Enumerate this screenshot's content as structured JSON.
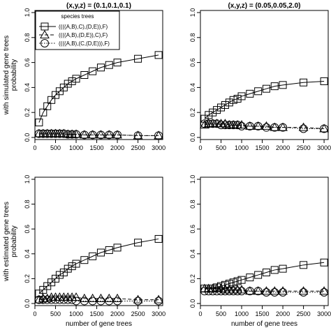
{
  "chart_data": {
    "type": "line",
    "row_labels": [
      [
        "with simulated gene trees",
        "probability"
      ],
      [
        "with estimated gene trees",
        "probability"
      ]
    ],
    "xlabel": "number of gene trees",
    "legend": {
      "title": "species trees",
      "placement": "top-left",
      "entries": [
        {
          "label": "((((A,B),C),(D,E)),F)",
          "marker": "square",
          "line": "solid"
        },
        {
          "label": "((((A,B),(D,E)),C),F)",
          "marker": "triangle",
          "line": "dashed"
        },
        {
          "label": "((((A,B),(C,(D,E))),F)",
          "marker": "circle",
          "line": "dotted"
        }
      ]
    },
    "x_ticks": [
      0,
      500,
      1000,
      1500,
      2000,
      2500,
      3000
    ],
    "y_ticks": [
      "0.0",
      "0.2",
      "0.4",
      "0.6",
      "0.8",
      "1.0"
    ],
    "xlim": [
      0,
      3100
    ],
    "ylim": [
      0,
      1
    ],
    "grid": false,
    "x": [
      100,
      200,
      300,
      400,
      500,
      600,
      700,
      800,
      900,
      1000,
      1200,
      1400,
      1600,
      1800,
      2000,
      2500,
      3000
    ],
    "panels": [
      {
        "title": "(x,y,z) = (0.1,0.1,0.1)",
        "series": [
          {
            "name": "((((A,B),C),(D,E)),F)",
            "values": [
              0.12,
              0.2,
              0.25,
              0.3,
              0.34,
              0.37,
              0.4,
              0.43,
              0.45,
              0.47,
              0.5,
              0.53,
              0.56,
              0.58,
              0.6,
              0.63,
              0.66
            ]
          },
          {
            "name": "((((A,B),(D,E)),C),F)",
            "values": [
              0.03,
              0.03,
              0.03,
              0.03,
              0.03,
              0.03,
              0.03,
              0.025,
              0.025,
              0.025,
              0.02,
              0.02,
              0.02,
              0.02,
              0.02,
              0.015,
              0.015
            ]
          },
          {
            "name": "((((A,B),(C,(D,E))),F)",
            "values": [
              0.03,
              0.03,
              0.03,
              0.03,
              0.03,
              0.03,
              0.03,
              0.025,
              0.025,
              0.025,
              0.02,
              0.02,
              0.02,
              0.02,
              0.02,
              0.015,
              0.015
            ]
          }
        ]
      },
      {
        "title": "(x,y,z) = (0.05,0.05,2.0)",
        "series": [
          {
            "name": "((((A,B),C),(D,E)),F)",
            "values": [
              0.15,
              0.18,
              0.2,
              0.22,
              0.24,
              0.26,
              0.28,
              0.3,
              0.31,
              0.33,
              0.35,
              0.37,
              0.39,
              0.41,
              0.42,
              0.44,
              0.45
            ]
          },
          {
            "name": "((((A,B),(D,E)),C),F)",
            "values": [
              0.1,
              0.11,
              0.11,
              0.11,
              0.11,
              0.11,
              0.1,
              0.1,
              0.1,
              0.1,
              0.09,
              0.09,
              0.09,
              0.08,
              0.08,
              0.08,
              0.07
            ]
          },
          {
            "name": "((((A,B),(C,(D,E))),F)",
            "values": [
              0.11,
              0.11,
              0.11,
              0.11,
              0.1,
              0.1,
              0.1,
              0.1,
              0.1,
              0.09,
              0.09,
              0.09,
              0.08,
              0.08,
              0.08,
              0.07,
              0.07
            ]
          }
        ]
      },
      {
        "title": "",
        "series": [
          {
            "name": "((((A,B),C),(D,E)),F)",
            "values": [
              0.08,
              0.11,
              0.14,
              0.17,
              0.2,
              0.23,
              0.25,
              0.28,
              0.3,
              0.32,
              0.35,
              0.38,
              0.41,
              0.43,
              0.45,
              0.49,
              0.52
            ]
          },
          {
            "name": "((((A,B),(D,E)),C),F)",
            "values": [
              0.03,
              0.04,
              0.04,
              0.05,
              0.05,
              0.05,
              0.05,
              0.05,
              0.05,
              0.05,
              0.04,
              0.04,
              0.04,
              0.04,
              0.04,
              0.03,
              0.03
            ]
          },
          {
            "name": "((((A,B),(C,(D,E))),F)",
            "values": [
              0.03,
              0.03,
              0.03,
              0.03,
              0.03,
              0.03,
              0.03,
              0.03,
              0.03,
              0.02,
              0.02,
              0.02,
              0.02,
              0.02,
              0.02,
              0.02,
              0.02
            ]
          }
        ]
      },
      {
        "title": "",
        "series": [
          {
            "name": "((((A,B),C),(D,E)),F)",
            "values": [
              0.12,
              0.12,
              0.12,
              0.13,
              0.14,
              0.15,
              0.16,
              0.17,
              0.18,
              0.19,
              0.21,
              0.23,
              0.25,
              0.27,
              0.28,
              0.31,
              0.33
            ]
          },
          {
            "name": "((((A,B),(D,E)),C),F)",
            "values": [
              0.12,
              0.12,
              0.12,
              0.12,
              0.12,
              0.11,
              0.11,
              0.11,
              0.11,
              0.11,
              0.1,
              0.1,
              0.1,
              0.1,
              0.1,
              0.1,
              0.1
            ]
          },
          {
            "name": "((((A,B),(C,(D,E))),F)",
            "values": [
              0.1,
              0.1,
              0.1,
              0.1,
              0.1,
              0.1,
              0.1,
              0.1,
              0.1,
              0.1,
              0.1,
              0.1,
              0.09,
              0.09,
              0.09,
              0.09,
              0.09
            ]
          }
        ]
      }
    ]
  }
}
